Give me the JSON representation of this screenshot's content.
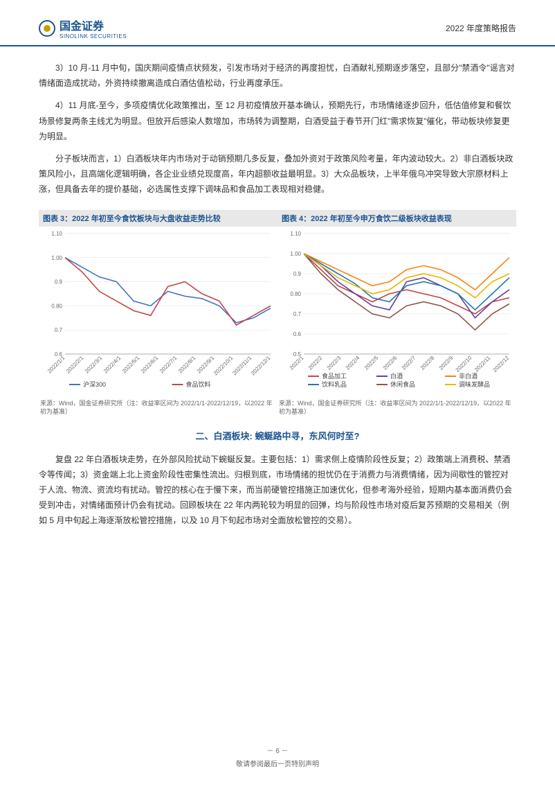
{
  "header": {
    "logo_cn": "国金证券",
    "logo_en": "SINOLINK SECURITIES",
    "report_type": "2022 年度策略报告"
  },
  "paragraphs": {
    "p3": "3）10 月-11 月中旬，国庆期间疫情点状频发，引发市场对于经济的再度担忧，白酒献礼预期逐步落空，且部分\"禁酒令\"谣言对情绪面造成扰动，外资持续撤离造成白酒估值松动，行业再度承压。",
    "p4": "4）11 月底-至今，多项疫情优化政策推出，至 12 月初疫情放开基本确认，预期先行，市场情绪逐步回升，低估值修复和餐饮场景修复两条主线尤为明显。但放开后感染人数增加，市场转为调整期，白酒受益于春节开门红\"需求恢复\"催化，带动板块修复更为明显。",
    "p5": "分子板块而言，1）白酒板块年内市场对于动销预期几多反复，叠加外资对于政策风险考量，年内波动较大。2）非白酒板块政策风险小，且高端化逻辑明确，各企业业绩兑现度高，年内超额收益最明显。3）大众品板块，上半年俄乌冲突导致大宗原材料上涨，但具备去年的提价基础，必选属性支撑下调味品和食品加工表现相对稳健。"
  },
  "chart3": {
    "title": "图表 3：2022 年初至今食饮板块与大盘收益走势比较",
    "source": "来源：Wind，国金证券研究所（注：收益率区间为 2022/1/1-2022/12/19，以2022 年初为基准）",
    "ylim": [
      0.6,
      1.1
    ],
    "ytick_step": 0.1,
    "x_labels": [
      "2022/1/1",
      "2022/2/1",
      "2022/3/1",
      "2022/4/1",
      "2022/5/1",
      "2022/6/1",
      "2022/7/1",
      "2022/8/1",
      "2022/9/1",
      "2022/10/1",
      "2022/11/1",
      "2022/12/1"
    ],
    "grid_color": "#dddddd",
    "background_color": "#ffffff",
    "axis_fontsize": 8,
    "series": [
      {
        "name": "沪深300",
        "color": "#4472c4",
        "values": [
          1.0,
          0.96,
          0.92,
          0.9,
          0.82,
          0.8,
          0.86,
          0.84,
          0.83,
          0.8,
          0.73,
          0.75,
          0.79
        ]
      },
      {
        "name": "食品饮料",
        "color": "#c44545",
        "values": [
          1.0,
          0.94,
          0.86,
          0.82,
          0.78,
          0.76,
          0.88,
          0.9,
          0.85,
          0.82,
          0.72,
          0.76,
          0.8
        ]
      }
    ]
  },
  "chart4": {
    "title": "图表 4：2022 年初至今申万食饮二级板块收益表现",
    "source": "来源：Wind，国金证券研究所（注：收益率区间为 2022/1/1-2022/12/19，以2022 年初为基准）",
    "ylim": [
      0.5,
      1.1
    ],
    "ytick_step": 0.1,
    "x_labels": [
      "2022/1",
      "2022/2",
      "2022/3",
      "2022/4",
      "2022/5",
      "2022/6",
      "2022/7",
      "2022/8",
      "2022/9",
      "2022/10",
      "2022/11",
      "2022/12"
    ],
    "grid_color": "#dddddd",
    "background_color": "#ffffff",
    "axis_fontsize": 8,
    "series": [
      {
        "name": "食品加工",
        "color": "#c44545",
        "values": [
          1.0,
          0.92,
          0.84,
          0.8,
          0.76,
          0.8,
          0.82,
          0.8,
          0.78,
          0.74,
          0.7,
          0.76,
          0.78
        ]
      },
      {
        "name": "白酒",
        "color": "#6a3d9a",
        "values": [
          1.0,
          0.94,
          0.86,
          0.8,
          0.74,
          0.72,
          0.86,
          0.88,
          0.84,
          0.8,
          0.68,
          0.76,
          0.82
        ]
      },
      {
        "name": "非白酒",
        "color": "#ff7f0e",
        "values": [
          1.0,
          0.96,
          0.92,
          0.88,
          0.84,
          0.86,
          0.92,
          0.94,
          0.92,
          0.88,
          0.82,
          0.9,
          0.98
        ]
      },
      {
        "name": "饮料乳品",
        "color": "#1f77b4",
        "values": [
          1.0,
          0.95,
          0.9,
          0.85,
          0.78,
          0.76,
          0.84,
          0.86,
          0.84,
          0.8,
          0.72,
          0.8,
          0.88
        ]
      },
      {
        "name": "休闲食品",
        "color": "#8c564b",
        "values": [
          1.0,
          0.9,
          0.82,
          0.76,
          0.7,
          0.68,
          0.74,
          0.76,
          0.74,
          0.7,
          0.62,
          0.7,
          0.75
        ]
      },
      {
        "name": "调味发酵品",
        "color": "#e6b800",
        "values": [
          1.0,
          0.94,
          0.88,
          0.84,
          0.8,
          0.82,
          0.88,
          0.9,
          0.88,
          0.84,
          0.78,
          0.86,
          0.9
        ]
      }
    ]
  },
  "section2": {
    "heading": "二、白酒板块: 蜿蜒路中寻，东风何时至?",
    "p1": "复盘 22 年白酒板块走势，在外部风险扰动下蜿蜒反复。主要包括：1）需求侧上疫情阶段性反复；2）政策端上消费税、禁酒令等传闻；3）资金端上北上资金阶段性密集性流出。归根到底，市场情绪的担忧仍在于消费力与消费情绪，因为间歇性的管控对于人流、物流、资流均有扰动。管控的核心在于慢下来，而当前硬管控措施正加速优化，但参考海外经验，短期内基本面消费仍会受到冲击，对情绪面预计仍会有扰动。回顾板块在 22 年内两轮较为明显的回弹，均与阶段性市场对疫后复苏预期的交易相关（例如 5 月中旬起上海逐渐放松管控措施，以及 10 月下旬起市场对全面放松管控的交易）。"
  },
  "footer": {
    "page_num": "－ 6 －",
    "disclaimer": "敬请参阅最后一页特别声明"
  }
}
